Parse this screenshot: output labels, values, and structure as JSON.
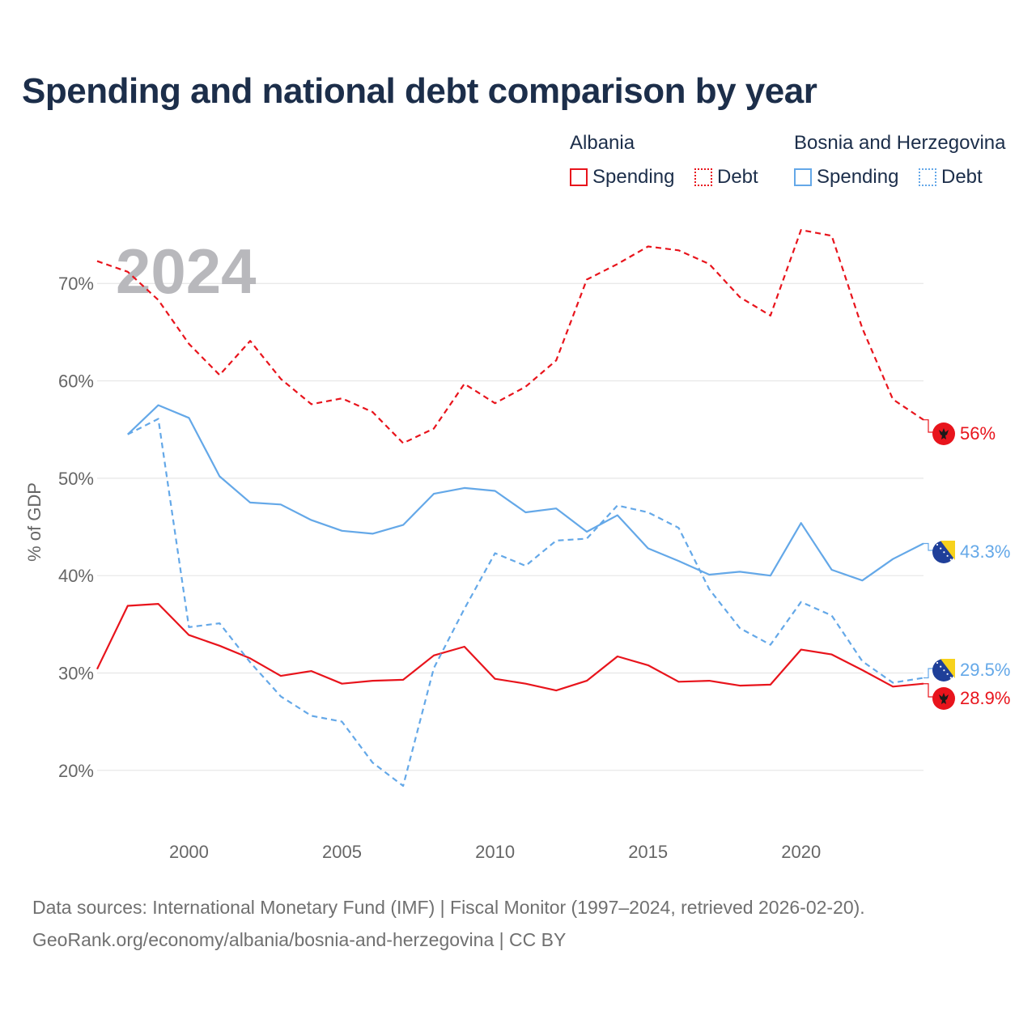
{
  "title": "Spending and national debt comparison by year",
  "legend": {
    "groups": [
      {
        "name": "Albania",
        "items": [
          {
            "label": "Spending",
            "color": "#e8141c",
            "style": "solid"
          },
          {
            "label": "Debt",
            "color": "#e8141c",
            "style": "dotted"
          }
        ]
      },
      {
        "name": "Bosnia and Herzegovina",
        "items": [
          {
            "label": "Spending",
            "color": "#64a8e8",
            "style": "solid"
          },
          {
            "label": "Debt",
            "color": "#64a8e8",
            "style": "dotted"
          }
        ]
      }
    ]
  },
  "source_line1": "Data sources: International Monetary Fund (IMF) | Fiscal Monitor (1997–2024, retrieved 2026-02-20).",
  "source_line2": "GeoRank.org/economy/albania/bosnia-and-herzegovina | CC BY",
  "chart_data": {
    "type": "line",
    "title": "Spending and national debt comparison by year",
    "year_watermark": "2024",
    "xlabel": "",
    "ylabel": "% of GDP",
    "xlim": [
      1997,
      2024
    ],
    "ylim": [
      13.5,
      77.5
    ],
    "xticks": [
      2000,
      2005,
      2010,
      2015,
      2020
    ],
    "xtick_labels": [
      "2000",
      "2005",
      "2010",
      "2015",
      "2020"
    ],
    "yticks": [
      20,
      30,
      40,
      50,
      60,
      70
    ],
    "ytick_labels": [
      "20%",
      "30%",
      "40%",
      "50%",
      "60%",
      "70%"
    ],
    "grid": true,
    "series": [
      {
        "name": "Albania Debt",
        "country": "Albania",
        "color": "#e8141c",
        "dash": "dashed",
        "x": [
          1997,
          1998,
          1999,
          2000,
          2001,
          2002,
          2003,
          2004,
          2005,
          2006,
          2007,
          2008,
          2009,
          2010,
          2011,
          2012,
          2013,
          2014,
          2015,
          2016,
          2017,
          2018,
          2019,
          2020,
          2021,
          2022,
          2023,
          2024
        ],
        "values": [
          72.3,
          71.2,
          68.3,
          63.8,
          60.6,
          64.1,
          60.2,
          57.6,
          58.2,
          56.8,
          53.6,
          55.1,
          59.7,
          57.7,
          59.4,
          62.1,
          70.4,
          72.0,
          73.8,
          73.4,
          72.0,
          68.6,
          66.7,
          75.5,
          74.9,
          65.4,
          58.1,
          56.0
        ],
        "end_label": "56%"
      },
      {
        "name": "Albania Spending",
        "country": "Albania",
        "color": "#e8141c",
        "dash": "solid",
        "x": [
          1997,
          1998,
          1999,
          2000,
          2001,
          2002,
          2003,
          2004,
          2005,
          2006,
          2007,
          2008,
          2009,
          2010,
          2011,
          2012,
          2013,
          2014,
          2015,
          2016,
          2017,
          2018,
          2019,
          2020,
          2021,
          2022,
          2023,
          2024
        ],
        "values": [
          30.4,
          36.9,
          37.1,
          33.9,
          32.8,
          31.5,
          29.7,
          30.2,
          28.9,
          29.2,
          29.3,
          31.8,
          32.7,
          29.4,
          28.9,
          28.2,
          29.2,
          31.7,
          30.8,
          29.1,
          29.2,
          28.7,
          28.8,
          32.4,
          31.9,
          30.3,
          28.6,
          28.9
        ],
        "end_label": "28.9%"
      },
      {
        "name": "Bosnia and Herzegovina Spending",
        "country": "Bosnia and Herzegovina",
        "color": "#64a8e8",
        "dash": "solid",
        "x": [
          1998,
          1999,
          2000,
          2001,
          2002,
          2003,
          2004,
          2005,
          2006,
          2007,
          2008,
          2009,
          2010,
          2011,
          2012,
          2013,
          2014,
          2015,
          2016,
          2017,
          2018,
          2019,
          2020,
          2021,
          2022,
          2023,
          2024
        ],
        "values": [
          54.5,
          57.5,
          56.2,
          50.2,
          47.5,
          47.3,
          45.7,
          44.6,
          44.3,
          45.2,
          48.4,
          49.0,
          48.7,
          46.5,
          46.9,
          44.5,
          46.2,
          42.8,
          41.5,
          40.1,
          40.4,
          40.0,
          45.4,
          40.6,
          39.5,
          41.7,
          43.3
        ],
        "end_label": "43.3%"
      },
      {
        "name": "Bosnia and Herzegovina Debt",
        "country": "Bosnia and Herzegovina",
        "color": "#64a8e8",
        "dash": "dashed",
        "x": [
          1998,
          1999,
          2000,
          2001,
          2002,
          2003,
          2004,
          2005,
          2006,
          2007,
          2008,
          2009,
          2010,
          2011,
          2012,
          2013,
          2014,
          2015,
          2016,
          2017,
          2018,
          2019,
          2020,
          2021,
          2022,
          2023,
          2024
        ],
        "values": [
          54.5,
          56.1,
          34.7,
          35.1,
          31.1,
          27.6,
          25.6,
          25.0,
          20.8,
          18.4,
          30.5,
          36.6,
          42.3,
          41.0,
          43.6,
          43.8,
          47.2,
          46.5,
          44.9,
          38.6,
          34.6,
          32.9,
          37.3,
          35.9,
          31.2,
          29.0,
          29.5
        ],
        "end_label": "29.5%"
      }
    ]
  }
}
